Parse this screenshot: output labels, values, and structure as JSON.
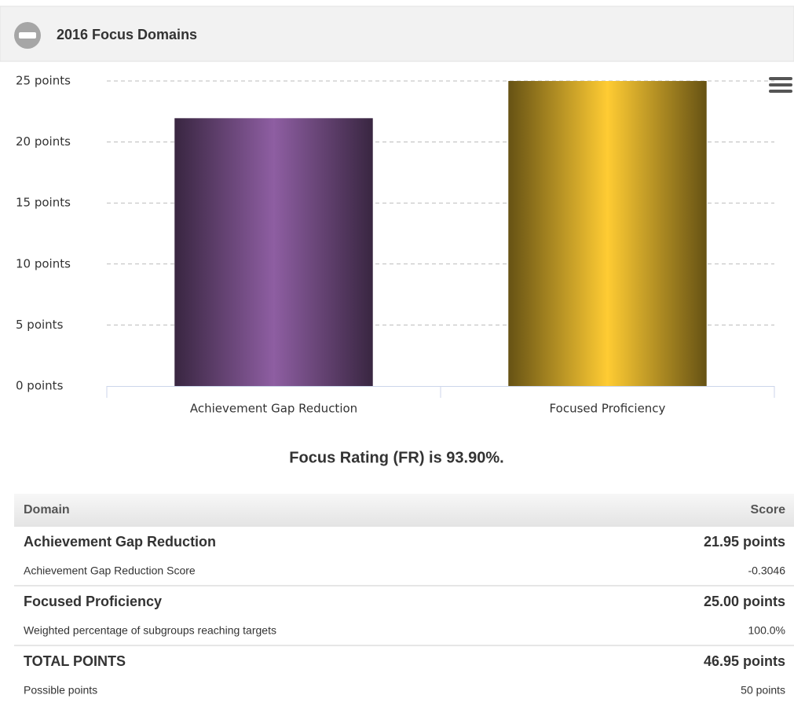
{
  "header": {
    "title": "2016 Focus Domains"
  },
  "chart_data": {
    "type": "bar",
    "categories": [
      "Achievement Gap Reduction",
      "Focused Proficiency"
    ],
    "values": [
      21.95,
      25
    ],
    "colors": [
      "#8e5ea2",
      "#ffcc33"
    ],
    "ylim": [
      0,
      25
    ],
    "yticks": [
      {
        "value": 0,
        "label": "0 points"
      },
      {
        "value": 5,
        "label": "5 points"
      },
      {
        "value": 10,
        "label": "10 points"
      },
      {
        "value": 15,
        "label": "15 points"
      },
      {
        "value": 20,
        "label": "20 points"
      },
      {
        "value": 25,
        "label": "25 points"
      }
    ],
    "grid": true
  },
  "summary": "Focus Rating (FR) is 93.90%.",
  "table": {
    "header": [
      "Domain",
      "Score"
    ],
    "rows": [
      [
        "Achievement Gap Reduction",
        "21.95 points"
      ],
      [
        "Achievement Gap Reduction Score",
        "-0.3046"
      ],
      [
        "Focused Proficiency",
        "25.00 points"
      ],
      [
        "Weighted percentage of subgroups reaching targets",
        "100.0%"
      ],
      [
        "TOTAL POINTS",
        "46.95 points"
      ],
      [
        "Possible points",
        "50 points"
      ]
    ]
  }
}
